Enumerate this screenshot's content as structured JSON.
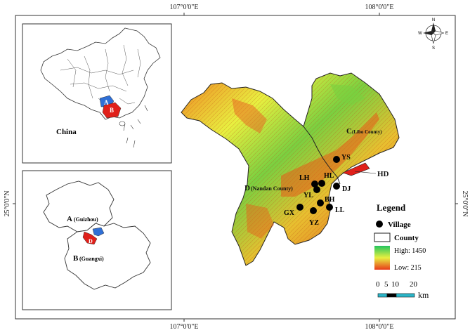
{
  "grid": {
    "top_left": "107°0'0\"E",
    "top_right": "108°0'0\"E",
    "bottom_left": "107°0'0\"E",
    "bottom_right": "108°0'0\"E",
    "left_lat": "25°0'0\"N",
    "right_lat": "25°0'0\"N"
  },
  "inset_china": {
    "label": "China",
    "marker_a": "A",
    "marker_b": "B"
  },
  "inset_provinces": {
    "a_letter": "A",
    "a_name": "(Guizhou)",
    "b_letter": "B",
    "b_name": "(Guangxi)",
    "d_marker": "D"
  },
  "main_map": {
    "county_c_letter": "C",
    "county_c_name": "(Libo County)",
    "county_d_letter": "D",
    "county_d_name": "(Nandan County)",
    "hd_label": "HD",
    "villages": [
      {
        "code": "YS"
      },
      {
        "code": "LH"
      },
      {
        "code": "HL"
      },
      {
        "code": "YL"
      },
      {
        "code": "DJ"
      },
      {
        "code": "BH"
      },
      {
        "code": "GX"
      },
      {
        "code": "LL"
      },
      {
        "code": "YZ"
      }
    ]
  },
  "compass": {
    "n": "N",
    "s": "S",
    "e": "E",
    "w": "W"
  },
  "legend": {
    "title": "Legend",
    "village_label": "Village",
    "county_label": "County",
    "high_label": "High: 1450",
    "low_label": "Low: 215",
    "colors": {
      "high": "#22c55e",
      "mid": "#e8f040",
      "low": "#e83a1a"
    }
  },
  "scale_bar": {
    "ticks": [
      "0",
      "5",
      "10",
      "20"
    ],
    "unit": "km"
  }
}
